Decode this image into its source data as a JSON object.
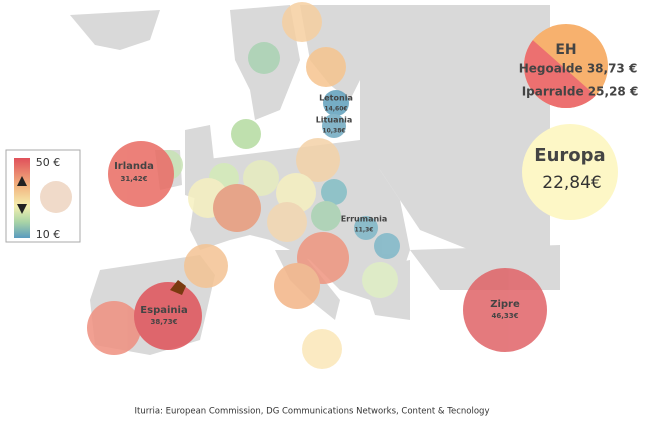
{
  "legend": {
    "max": "50 €",
    "min": "10 €"
  },
  "labeled_bubbles": [
    {
      "country": "Irlanda",
      "price": "31,42€"
    },
    {
      "country": "Espainia",
      "price": "38,73€"
    },
    {
      "country": "Letonia",
      "price": "14,60€"
    },
    {
      "country": "Lituania",
      "price": "10,38€"
    },
    {
      "country": "Errumania",
      "price": "11,3€"
    },
    {
      "country": "Zipre",
      "price": "46,33€"
    }
  ],
  "eh": {
    "title": "EH",
    "hegoalde": "Hegoalde 38,73 €",
    "iparralde": "Iparralde 25,28 €"
  },
  "europa": {
    "title": "Europa",
    "price": "22,84€"
  },
  "source": "Iturria: European Commission,  DG Communications Networks, Content & Tecnology"
}
